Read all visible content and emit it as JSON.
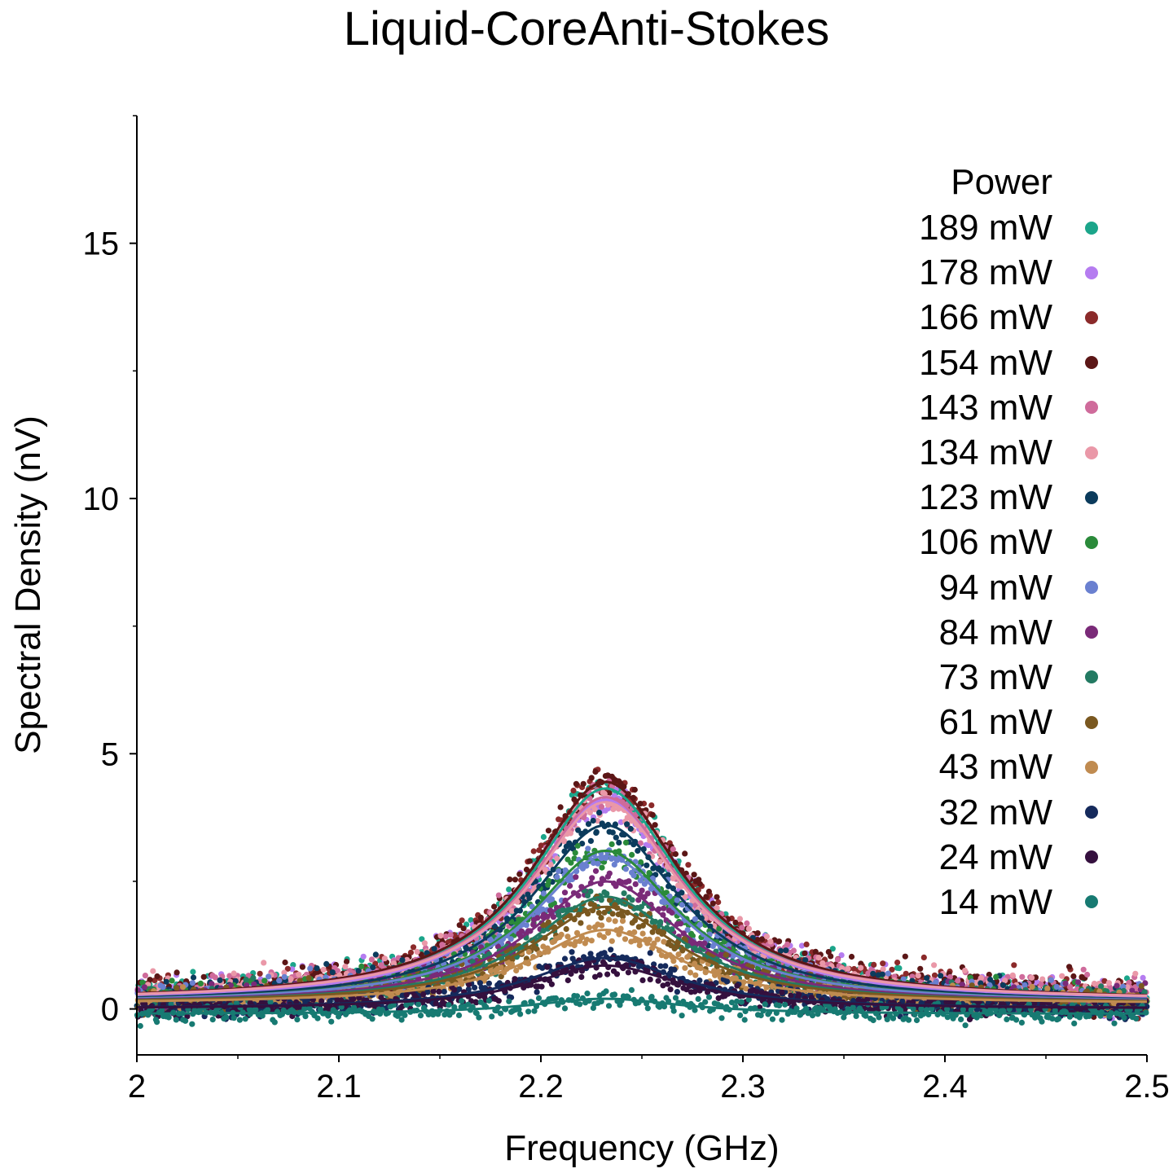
{
  "chart_data": {
    "type": "scatter",
    "title": "Liquid-CoreAnti-Stokes",
    "xlabel": "Frequency (GHz)",
    "ylabel": "Spectral Density (nV)",
    "xlim": [
      2.0,
      2.5
    ],
    "ylim": [
      -0.9,
      17.5
    ],
    "x_ticks": [
      2.0,
      2.1,
      2.2,
      2.3,
      2.4,
      2.5
    ],
    "x_tick_labels": [
      "2",
      "2.1",
      "2.2",
      "2.3",
      "2.4",
      "2.5"
    ],
    "y_ticks": [
      0,
      5,
      10,
      15
    ],
    "y_tick_labels": [
      "0",
      "5",
      "10",
      "15"
    ],
    "grid": false,
    "legend_title": "Power",
    "legend_position": "top-right",
    "center_freq": 2.232,
    "series": [
      {
        "name": "189 mW",
        "color": "#1ba58a",
        "peak": 4.2,
        "offset": 0.12
      },
      {
        "name": "178 mW",
        "color": "#b57cf0",
        "peak": 4.0,
        "offset": 0.1
      },
      {
        "name": "166 mW",
        "color": "#8b2a2a",
        "peak": 4.3,
        "offset": 0.15
      },
      {
        "name": "154 mW",
        "color": "#5b1616",
        "peak": 4.3,
        "offset": 0.15
      },
      {
        "name": "143 mW",
        "color": "#cf6b9b",
        "peak": 4.0,
        "offset": 0.15
      },
      {
        "name": "134 mW",
        "color": "#ea98a8",
        "peak": 3.9,
        "offset": 0.15
      },
      {
        "name": "123 mW",
        "color": "#0b3b5c",
        "peak": 3.5,
        "offset": 0.1
      },
      {
        "name": "106 mW",
        "color": "#2a8a3a",
        "peak": 3.0,
        "offset": 0.1
      },
      {
        "name": "94 mW",
        "color": "#6a80d0",
        "peak": 2.9,
        "offset": 0.1
      },
      {
        "name": "84 mW",
        "color": "#7a2a78",
        "peak": 2.4,
        "offset": 0.1
      },
      {
        "name": "73 mW",
        "color": "#237a62",
        "peak": 2.1,
        "offset": 0.1
      },
      {
        "name": "61 mW",
        "color": "#7a5820",
        "peak": 1.9,
        "offset": 0.1
      },
      {
        "name": "43 mW",
        "color": "#c08b50",
        "peak": 1.45,
        "offset": 0.1
      },
      {
        "name": "32 mW",
        "color": "#152a5c",
        "peak": 1.0,
        "offset": 0.0
      },
      {
        "name": "24 mW",
        "color": "#35103e",
        "peak": 0.85,
        "offset": 0.0
      },
      {
        "name": "14 mW",
        "color": "#177a72",
        "peak": 0.3,
        "offset": -0.1
      }
    ]
  }
}
